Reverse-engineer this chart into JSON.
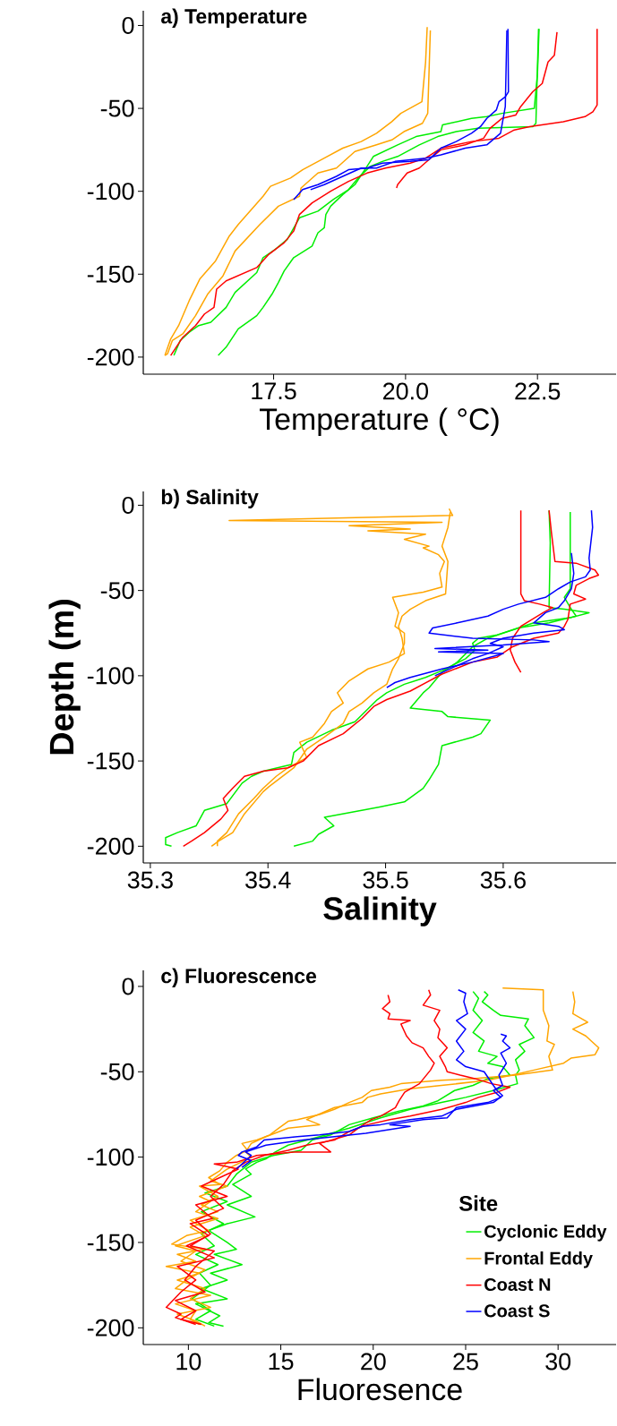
{
  "chart_data": [
    {
      "type": "line",
      "title": "a) Temperature",
      "xlabel": "Temperature ( °C)",
      "xlim": [
        15.03,
        23.99
      ],
      "ylim": [
        -210.3,
        8.9
      ],
      "xticks": [
        {
          "value": 17.5,
          "label": "17.5"
        },
        {
          "value": 20,
          "label": "20.0"
        },
        {
          "value": 22.5,
          "label": "22.5"
        }
      ],
      "yticks": [
        0,
        -50,
        -100,
        -150,
        -200
      ],
      "series": [
        {
          "color": "#00ee00",
          "x": [
            22.53,
            22.5,
            22.44,
            21.83,
            21.54,
            21.25,
            20.7,
            20.67,
            20.2,
            19.85,
            19.39,
            19.27,
            19.04,
            18.81,
            18.58,
            18.49,
            18.46,
            18.34,
            18.23,
            17.88,
            17.7,
            17.59,
            17.47,
            17.3,
            17.18,
            16.83,
            16.6,
            16.45
          ],
          "values": [
            -2,
            -29,
            -50,
            -53,
            -55,
            -56,
            -60,
            -64,
            -67,
            -72,
            -79,
            -85,
            -96,
            -102,
            -109,
            -114,
            -122,
            -125,
            -133,
            -140,
            -148,
            -155,
            -162,
            -170,
            -175,
            -183,
            -194,
            -199
          ]
        },
        {
          "color": "#00ee00",
          "x": [
            22.52,
            22.47,
            22.41,
            21.37,
            20.96,
            20.61,
            20.26,
            19.85,
            19.56,
            19.33,
            19.1,
            18.92,
            18.63,
            18.34,
            17.99,
            17.76,
            17.53,
            17.3,
            17.18,
            16.77,
            16.6,
            16.31,
            16.08,
            15.9,
            15.73,
            15.61
          ],
          "values": [
            -2,
            -59,
            -61,
            -62,
            -64,
            -67,
            -72,
            -79,
            -82,
            -85,
            -92,
            -99,
            -105,
            -112,
            -116,
            -129,
            -135,
            -140,
            -149,
            -161,
            -170,
            -179,
            -181,
            -185,
            -190,
            -199
          ]
        },
        {
          "color": "#ffa500",
          "x": [
            20.41,
            20.38,
            20.31,
            19.91,
            19.74,
            19.45,
            19.16,
            18.81,
            18.46,
            18.05,
            17.82,
            17.44,
            17.3,
            16.83,
            16.66,
            16.4,
            16.1,
            15.9,
            15.7,
            15.55,
            15.44
          ],
          "values": [
            -1,
            -22,
            -46,
            -53,
            -58,
            -65,
            -70,
            -74,
            -80,
            -87,
            -92,
            -97,
            -103,
            -120,
            -127,
            -142,
            -153,
            -166,
            -181,
            -189,
            -199
          ]
        },
        {
          "color": "#ffa500",
          "x": [
            20.47,
            20.42,
            20.32,
            19.97,
            19.74,
            19.45,
            19.04,
            18.69,
            18.34,
            18.02,
            17.99,
            17.59,
            17.24,
            16.77,
            16.54,
            16.25,
            16.02,
            15.78,
            15.58,
            15.49,
            15.44
          ],
          "values": [
            -3,
            -53,
            -59,
            -64,
            -69,
            -72,
            -76,
            -86,
            -89,
            -98,
            -103,
            -109,
            -120,
            -136,
            -151,
            -162,
            -175,
            -186,
            -190,
            -198,
            -199
          ]
        },
        {
          "color": "#ff0000",
          "x": [
            23.63,
            23.63,
            23.55,
            23.4,
            22.99,
            22.35,
            22.06,
            21.77,
            21.25,
            20.96,
            20.67,
            20.38,
            20.09,
            19.62,
            19.27,
            18.92,
            18.58,
            18.23,
            17.99,
            17.88,
            17.7,
            17.41,
            17.18,
            16.6,
            16.42,
            16.37,
            16.19,
            16.02,
            15.78,
            15.55
          ],
          "values": [
            -2,
            -48,
            -52,
            -55,
            -58,
            -61,
            -63,
            -68,
            -70,
            -72,
            -74,
            -80,
            -83,
            -86,
            -89,
            -94,
            -100,
            -107,
            -114,
            -124,
            -131,
            -138,
            -146,
            -154,
            -159,
            -170,
            -174,
            -181,
            -188,
            -199
          ]
        },
        {
          "color": "#ff0000",
          "x": [
            22.87,
            22.82,
            22.7,
            22.59,
            22.41,
            22.18,
            22.09,
            21.83,
            21.6,
            21.48,
            21.13,
            20.67,
            20.44,
            20.26,
            20.03,
            19.85,
            19.83
          ],
          "values": [
            -4,
            -18,
            -22,
            -35,
            -40,
            -49,
            -54,
            -56,
            -62,
            -68,
            -72,
            -75,
            -81,
            -86,
            -89,
            -96,
            -98
          ]
        },
        {
          "color": "#0000ff",
          "x": [
            21.94,
            21.95,
            21.89,
            21.77,
            21.72,
            21.54,
            21.42,
            21.25,
            20.96,
            20.67,
            20.44,
            20.09,
            19.56,
            19.27,
            18.92,
            18.69,
            18.34,
            18.05,
            17.88
          ],
          "values": [
            -2,
            -40,
            -43,
            -46,
            -51,
            -56,
            -61,
            -65,
            -70,
            -74,
            -81,
            -82,
            -83,
            -86,
            -87,
            -91,
            -96,
            -99,
            -105
          ]
        },
        {
          "color": "#0000ff",
          "x": [
            21.92,
            21.89,
            21.8,
            21.54,
            21.13,
            20.67,
            20.38,
            19.8,
            19.45,
            19.16,
            18.81,
            18.46,
            18.2
          ],
          "values": [
            -3,
            -49,
            -65,
            -72,
            -74,
            -78,
            -80,
            -82,
            -86,
            -86,
            -91,
            -96,
            -99
          ]
        }
      ]
    },
    {
      "type": "line",
      "title": "b) Salinity",
      "xlabel": "Salinity",
      "ylabel": "Depth (m)",
      "xlim": [
        35.294,
        35.696
      ],
      "ylim": [
        -209.8,
        8.1
      ],
      "xticks": [
        35.3,
        35.4,
        35.5,
        35.6
      ],
      "yticks": [
        0,
        -50,
        -100,
        -150,
        -200
      ],
      "series": [
        {
          "color": "#00ee00",
          "x": [
            35.639,
            35.64,
            35.639,
            35.652,
            35.673,
            35.657,
            35.626,
            35.613,
            35.595,
            35.579,
            35.574,
            35.576,
            35.568,
            35.548,
            35.534,
            35.516,
            35.501,
            35.493,
            35.474,
            35.454,
            35.433,
            35.422,
            35.42,
            35.396,
            35.386,
            35.378,
            35.365,
            35.346,
            35.339,
            35.323,
            35.313,
            35.313,
            35.318
          ],
          "values": [
            -3,
            -22,
            -60,
            -61,
            -63,
            -66,
            -69,
            -72,
            -76,
            -78,
            -81,
            -85,
            -90,
            -97,
            -101,
            -105,
            -110,
            -114,
            -127,
            -132,
            -139,
            -145,
            -152,
            -156,
            -159,
            -163,
            -175,
            -179,
            -188,
            -192,
            -195,
            -199,
            -200
          ]
        },
        {
          "color": "#00ee00",
          "x": [
            35.657,
            35.657,
            35.652,
            35.657,
            35.662,
            35.639,
            35.613,
            35.587,
            35.574,
            35.561,
            35.548,
            35.537,
            35.532,
            35.521,
            35.548,
            35.553,
            35.589,
            35.581,
            35.574,
            35.548,
            35.545,
            35.537,
            35.532,
            35.516,
            35.495,
            35.448,
            35.456,
            35.443,
            35.438,
            35.422
          ],
          "values": [
            -4,
            -49,
            -54,
            -60,
            -65,
            -69,
            -72,
            -78,
            -83,
            -92,
            -98,
            -107,
            -110,
            -119,
            -121,
            -124,
            -126,
            -134,
            -136,
            -141,
            -152,
            -161,
            -166,
            -174,
            -177,
            -183,
            -188,
            -193,
            -197,
            -200
          ]
        },
        {
          "color": "#ffa500",
          "x": [
            35.554,
            35.557,
            35.367,
            35.548,
            35.469,
            35.521,
            35.485,
            35.534,
            35.516,
            35.537,
            35.532,
            35.545,
            35.55,
            35.546,
            35.548,
            35.532,
            35.506,
            35.511,
            35.508,
            35.516,
            35.516,
            35.511,
            35.506,
            35.501,
            35.49,
            35.48,
            35.469,
            35.464,
            35.448,
            35.433,
            35.422,
            35.401,
            35.396,
            35.38,
            35.37,
            35.358,
            35.352
          ],
          "values": [
            -2,
            -6,
            -9,
            -10,
            -12,
            -14,
            -15,
            -17,
            -20,
            -24,
            -25,
            -29,
            -33,
            -40,
            -48,
            -51,
            -54,
            -63,
            -71,
            -75,
            -81,
            -90,
            -96,
            -105,
            -110,
            -116,
            -121,
            -128,
            -136,
            -143,
            -154,
            -165,
            -168,
            -181,
            -192,
            -197,
            -200
          ]
        },
        {
          "color": "#ffa500",
          "x": [
            35.555,
            35.553,
            35.548,
            35.553,
            35.551,
            35.534,
            35.521,
            35.514,
            35.511,
            35.514,
            35.516,
            35.503,
            35.485,
            35.469,
            35.459,
            35.464,
            35.454,
            35.448,
            35.438,
            35.427,
            35.433,
            35.417,
            35.407,
            35.396,
            35.388,
            35.375,
            35.365,
            35.357,
            35.357
          ],
          "values": [
            -4,
            -13,
            -24,
            -33,
            -52,
            -56,
            -61,
            -65,
            -71,
            -78,
            -87,
            -92,
            -96,
            -103,
            -110,
            -116,
            -121,
            -128,
            -136,
            -139,
            -148,
            -154,
            -159,
            -166,
            -172,
            -181,
            -192,
            -197,
            -200
          ]
        },
        {
          "color": "#ff0000",
          "x": [
            35.615,
            35.615,
            35.618,
            35.631,
            35.642,
            35.634,
            35.615,
            35.608,
            35.606,
            35.61,
            35.615
          ],
          "values": [
            -3,
            -52,
            -56,
            -58,
            -60,
            -63,
            -71,
            -78,
            -85,
            -92,
            -98
          ]
        },
        {
          "color": "#ff0000",
          "x": [
            35.639,
            35.641,
            35.644,
            35.662,
            35.678,
            35.681,
            35.673,
            35.662,
            35.66,
            35.67,
            35.657,
            35.655,
            35.652,
            35.647,
            35.626,
            35.608,
            35.595,
            35.574,
            35.548,
            35.521,
            35.501,
            35.49,
            35.48,
            35.464,
            35.443,
            35.43,
            35.417,
            35.396,
            35.38,
            35.37,
            35.362,
            35.366,
            35.36,
            35.346,
            35.335,
            35.328
          ],
          "values": [
            -3,
            -16,
            -33,
            -34,
            -38,
            -41,
            -43,
            -47,
            -52,
            -55,
            -58,
            -67,
            -71,
            -75,
            -78,
            -83,
            -89,
            -92,
            -99,
            -109,
            -114,
            -118,
            -125,
            -134,
            -141,
            -150,
            -154,
            -156,
            -159,
            -166,
            -172,
            -179,
            -184,
            -192,
            -197,
            -200
          ]
        },
        {
          "color": "#0000ff",
          "x": [
            35.675,
            35.676,
            35.673,
            35.674,
            35.67,
            35.657,
            35.647,
            35.636,
            35.613,
            35.6,
            35.587,
            35.561,
            35.54,
            35.537,
            35.574,
            35.626,
            35.639,
            35.6,
            35.542,
            35.587,
            35.545,
            35.6,
            35.595,
            35.574,
            35.548,
            35.521,
            35.508,
            35.501
          ],
          "values": [
            -3,
            -13,
            -31,
            -38,
            -42,
            -45,
            -49,
            -54,
            -58,
            -61,
            -65,
            -69,
            -72,
            -75,
            -78,
            -79,
            -80,
            -82,
            -84,
            -85,
            -86,
            -87,
            -88,
            -92,
            -96,
            -101,
            -104,
            -107
          ]
        },
        {
          "color": "#0000ff",
          "x": [
            35.658,
            35.66,
            35.658,
            35.652,
            35.647,
            35.636,
            35.626,
            35.647,
            35.652,
            35.626,
            35.6,
            35.589,
            35.6,
            35.587,
            35.574,
            35.561,
            35.542
          ],
          "values": [
            -28,
            -40,
            -49,
            -56,
            -60,
            -63,
            -69,
            -71,
            -73,
            -75,
            -78,
            -81,
            -83,
            -87,
            -90,
            -94,
            -100
          ]
        }
      ]
    },
    {
      "type": "line",
      "title": "c) Fluorescence",
      "xlabel": "Fluoresence",
      "xlim": [
        7.56,
        33.14
      ],
      "ylim": [
        -209.8,
        9.4
      ],
      "xticks": [
        10,
        15,
        20,
        25,
        30
      ],
      "yticks": [
        0,
        -50,
        -100,
        -150,
        -200
      ],
      "legend": "bottom right",
      "legend_title": "Site",
      "series": [
        {
          "name": "Cyclonic Eddy",
          "color": "#00ee00",
          "x": [
            26.0,
            26.2,
            25.9,
            26.5,
            26.9,
            28.4,
            28.2,
            28.7,
            27.9,
            28.2,
            27.7,
            27.9,
            27.7,
            27.8,
            26.5,
            25.0,
            23.7,
            22.0,
            20.4,
            18.7,
            17.1,
            15.4,
            14.7,
            14.2,
            13.7,
            13.1,
            13.4,
            12.4,
            13.4,
            12.1,
            13.6,
            12.1,
            11.1,
            12.1,
            12.6,
            11.4,
            12.9,
            11.2,
            12.1,
            10.7,
            12.1,
            10.4,
            11.7,
            11.1,
            11.9
          ],
          "values": [
            -3,
            -5,
            -9,
            -14,
            -17,
            -19,
            -23,
            -30,
            -34,
            -38,
            -43,
            -49,
            -52,
            -57,
            -61,
            -65,
            -68,
            -72,
            -77,
            -83,
            -88,
            -93,
            -97,
            -101,
            -103,
            -107,
            -110,
            -116,
            -123,
            -128,
            -135,
            -139,
            -143,
            -150,
            -154,
            -157,
            -163,
            -168,
            -172,
            -177,
            -183,
            -186,
            -193,
            -197,
            -199
          ]
        },
        {
          "color": "#00ee00",
          "x": [
            25.4,
            25.7,
            25.4,
            25.9,
            25.4,
            26.0,
            25.7,
            26.7,
            26.2,
            27.0,
            27.4,
            26.2,
            25.4,
            24.4,
            23.5,
            22.7,
            21.4,
            20.0,
            18.7,
            17.7,
            16.7,
            16.1,
            14.6,
            13.4,
            12.6,
            12.1,
            10.9,
            12.1,
            10.7,
            11.9,
            10.7,
            11.4,
            10.4,
            11.6,
            10.6,
            11.2,
            10.2,
            11.2,
            10.4,
            11.4
          ],
          "values": [
            -3,
            -7,
            -14,
            -20,
            -27,
            -32,
            -38,
            -41,
            -45,
            -47,
            -52,
            -54,
            -58,
            -61,
            -67,
            -70,
            -73,
            -77,
            -81,
            -87,
            -90,
            -96,
            -99,
            -103,
            -110,
            -117,
            -121,
            -126,
            -132,
            -139,
            -145,
            -152,
            -157,
            -163,
            -168,
            -175,
            -183,
            -190,
            -195,
            -199
          ]
        },
        {
          "name": "Frontal Eddy",
          "color": "#ffa500",
          "x": [
            27.0,
            29.2,
            29.2,
            29.5,
            29.4,
            29.8,
            29.5,
            29.6,
            29.7,
            29.0,
            27.7,
            25.4,
            23.7,
            22.5,
            21.5,
            20.9,
            19.9,
            19.4,
            18.7,
            17.9,
            17.1,
            15.9,
            15.4,
            14.9,
            14.4,
            13.7,
            12.9,
            13.2,
            12.6,
            12.1,
            11.7,
            11.1,
            11.7,
            10.6,
            11.6,
            10.7,
            11.6,
            10.1,
            11.1,
            9.9,
            9.1,
            10.9,
            9.4,
            10.4,
            8.8,
            10.6,
            9.4,
            10.9,
            10.1,
            11.2,
            9.4,
            10.4,
            10.9
          ],
          "values": [
            -1,
            -2,
            -14,
            -23,
            -32,
            -34,
            -41,
            -45,
            -49,
            -50,
            -52,
            -54,
            -55,
            -56,
            -57,
            -59,
            -61,
            -65,
            -68,
            -72,
            -75,
            -78,
            -79,
            -83,
            -87,
            -90,
            -92,
            -96,
            -99,
            -103,
            -108,
            -112,
            -116,
            -117,
            -123,
            -128,
            -132,
            -137,
            -143,
            -146,
            -151,
            -154,
            -157,
            -161,
            -164,
            -168,
            -172,
            -177,
            -183,
            -188,
            -192,
            -196,
            -199
          ]
        },
        {
          "color": "#ffa500",
          "x": [
            30.8,
            30.9,
            30.8,
            31.6,
            30.8,
            31.5,
            31.8,
            32.2,
            32.0,
            30.7,
            30.3,
            28.7,
            27.9,
            26.2,
            23.7,
            22.0,
            20.4,
            19.7,
            19.4,
            17.9,
            16.4,
            17.1,
            15.4,
            14.2,
            13.4,
            13.1,
            13.4,
            12.1,
            11.2,
            12.1,
            10.6,
            11.2,
            10.4,
            11.6,
            10.1,
            10.9,
            9.3,
            10.4,
            9.6,
            10.9,
            9.9,
            9.3,
            11.2,
            9.3,
            10.4,
            10.1,
            10.6
          ],
          "values": [
            -3,
            -9,
            -16,
            -21,
            -25,
            -29,
            -32,
            -36,
            -40,
            -42,
            -45,
            -49,
            -51,
            -55,
            -58,
            -60,
            -63,
            -65,
            -68,
            -71,
            -78,
            -81,
            -83,
            -88,
            -92,
            -97,
            -100,
            -107,
            -114,
            -117,
            -123,
            -126,
            -132,
            -136,
            -141,
            -146,
            -152,
            -155,
            -161,
            -166,
            -172,
            -177,
            -181,
            -186,
            -190,
            -195,
            -198
          ]
        },
        {
          "name": "Coast N",
          "color": "#ff0000",
          "x": [
            20.8,
            20.9,
            20.5,
            20.9,
            20.8,
            22.0,
            21.5,
            21.8,
            22.1,
            22.7,
            23.0,
            23.3,
            23.1,
            22.5,
            21.7,
            21.4,
            21.2,
            20.4,
            19.9,
            19.2,
            18.7,
            17.1,
            17.7,
            15.7,
            13.7,
            12.6,
            11.4,
            12.7,
            11.7,
            10.7,
            12.1,
            10.4,
            11.3,
            10.1,
            11.1,
            9.9,
            11.4,
            9.4,
            10.4,
            9.6,
            8.8,
            9.6,
            9.3,
            10.4
          ],
          "values": [
            -5,
            -9,
            -13,
            -16,
            -19,
            -20,
            -22,
            -29,
            -33,
            -36,
            -41,
            -45,
            -49,
            -57,
            -62,
            -67,
            -71,
            -76,
            -78,
            -83,
            -87,
            -92,
            -97,
            -97,
            -99,
            -103,
            -104,
            -107,
            -112,
            -117,
            -123,
            -128,
            -136,
            -139,
            -146,
            -152,
            -159,
            -164,
            -172,
            -179,
            -188,
            -192,
            -194,
            -198
          ]
        },
        {
          "color": "#ff0000",
          "x": [
            23.0,
            23.1,
            22.7,
            23.6,
            23.3,
            23.6,
            23.5,
            24.0,
            23.6,
            23.9,
            24.0,
            24.7,
            25.5,
            26.4,
            27.4,
            26.7,
            25.7,
            25.0,
            23.7,
            22.0,
            20.9,
            19.7,
            18.7,
            17.9,
            16.4,
            15.4,
            14.1,
            13.1,
            12.4,
            11.9,
            11.2,
            11.9,
            10.4,
            11.2,
            10.1,
            11.4,
            10.4,
            9.8,
            10.9,
            9.3,
            10.4,
            9.6,
            10.7
          ],
          "values": [
            -2,
            -5,
            -11,
            -14,
            -20,
            -25,
            -30,
            -36,
            -41,
            -47,
            -50,
            -52,
            -54,
            -57,
            -59,
            -62,
            -65,
            -68,
            -72,
            -76,
            -78,
            -81,
            -85,
            -90,
            -93,
            -96,
            -99,
            -103,
            -108,
            -116,
            -123,
            -130,
            -137,
            -145,
            -152,
            -155,
            -164,
            -172,
            -179,
            -184,
            -190,
            -195,
            -198
          ]
        },
        {
          "name": "Coast S",
          "color": "#0000ff",
          "x": [
            24.6,
            25.0,
            24.9,
            25.1,
            24.5,
            25.0,
            24.5,
            24.9,
            24.5,
            25.0,
            26.0,
            26.5,
            26.7,
            27.0,
            26.5,
            24.5,
            23.7,
            22.0,
            20.4,
            19.4,
            18.7,
            17.1,
            15.9,
            14.1,
            13.7,
            12.9,
            12.7,
            13.4,
            12.9
          ],
          "values": [
            -2,
            -4,
            -9,
            -16,
            -20,
            -25,
            -32,
            -38,
            -43,
            -47,
            -50,
            -58,
            -61,
            -64,
            -68,
            -72,
            -76,
            -78,
            -81,
            -82,
            -85,
            -87,
            -88,
            -90,
            -94,
            -97,
            -99,
            -102,
            -106
          ]
        },
        {
          "color": "#0000ff",
          "x": [
            26.9,
            27.2,
            27.0,
            27.4,
            26.9,
            27.2,
            26.8,
            27.0,
            26.5,
            26.9,
            26.2,
            24.5,
            24.0,
            22.7,
            20.9,
            22.0,
            19.6,
            17.9,
            16.2,
            14.2,
            13.1,
            13.4,
            12.6
          ],
          "values": [
            -28,
            -29,
            -32,
            -36,
            -39,
            -45,
            -52,
            -58,
            -61,
            -65,
            -68,
            -71,
            -77,
            -78,
            -81,
            -82,
            -86,
            -88,
            -90,
            -93,
            -97,
            -99,
            -107
          ]
        }
      ]
    }
  ]
}
